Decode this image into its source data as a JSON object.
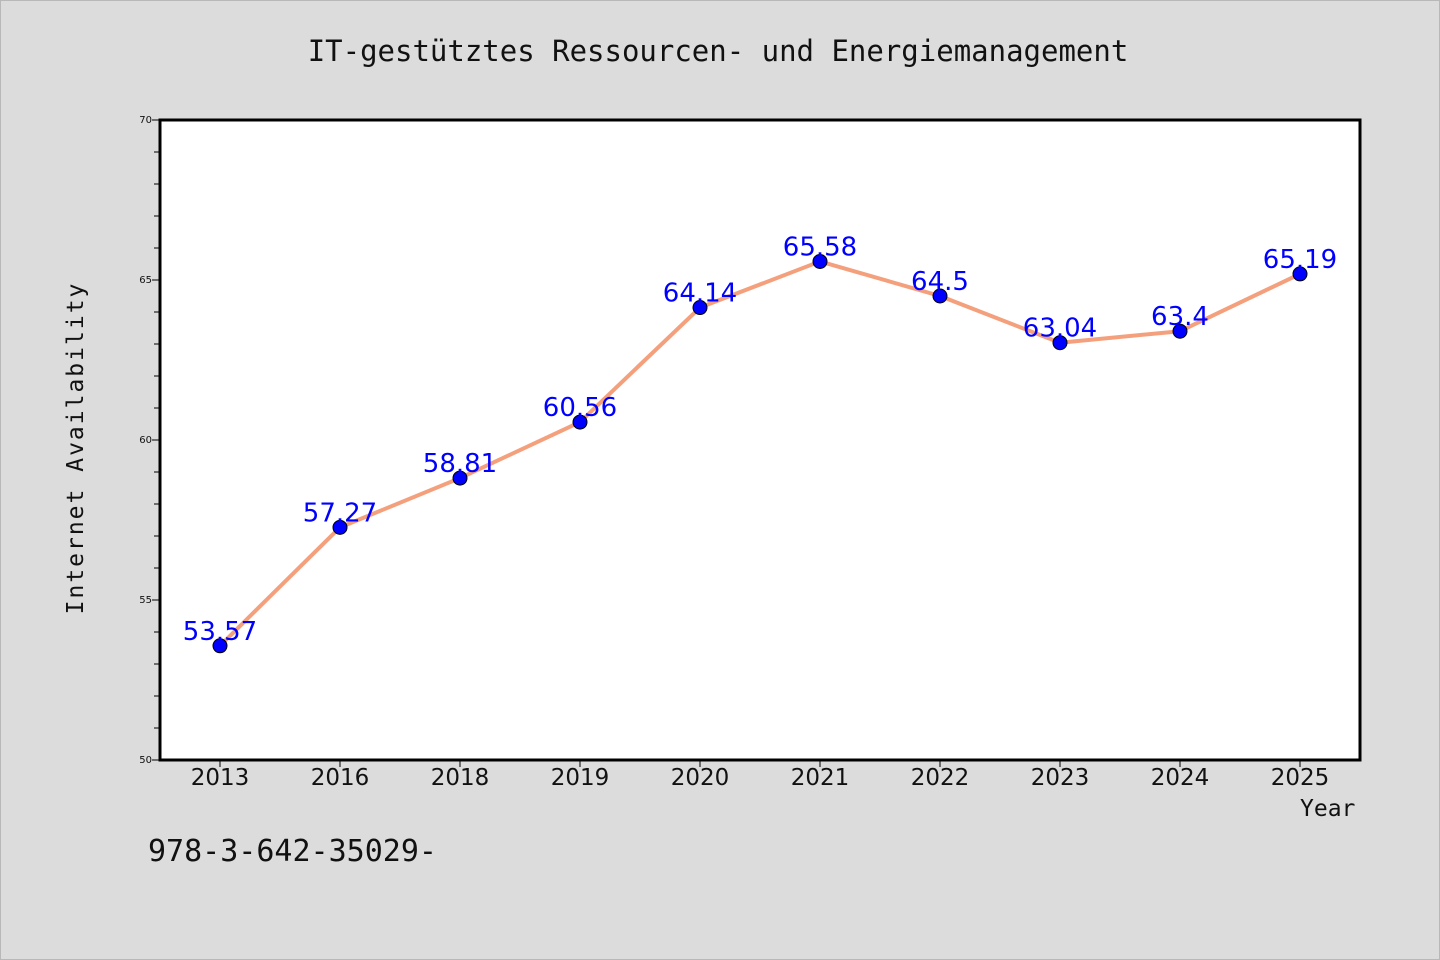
{
  "title": "IT-gestütztes Ressourcen- und Energiemanagement",
  "footer_text": "978-3-642-35029-",
  "colors": {
    "background": "#dcdcdc",
    "plot_background": "#ffffff",
    "line": "#f4a07c",
    "marker": "#0000ff",
    "data_label": "#0000ff",
    "axis": "#000000"
  },
  "chart_data": {
    "type": "line",
    "title": "IT-gestütztes Ressourcen- und Energiemanagement",
    "xlabel": "Year",
    "ylabel": "Internet Availability",
    "categories": [
      "2013",
      "2016",
      "2018",
      "2019",
      "2020",
      "2021",
      "2022",
      "2023",
      "2024",
      "2025"
    ],
    "series": [
      {
        "values": [
          53.57,
          57.27,
          58.81,
          60.56,
          64.14,
          65.58,
          64.5,
          63.04,
          63.4,
          65.19
        ],
        "labels": [
          "53.57",
          "57.27",
          "58.81",
          "60.56",
          "64.14",
          "65.58",
          "64.5",
          "63.04",
          "63.4",
          "65.19"
        ]
      }
    ],
    "ylim": [
      50,
      70
    ],
    "yticks": [
      "50",
      "55",
      "60",
      "65",
      "70"
    ],
    "y_minor_step": 1,
    "grid": false,
    "legend": "none",
    "markers": "circle"
  }
}
